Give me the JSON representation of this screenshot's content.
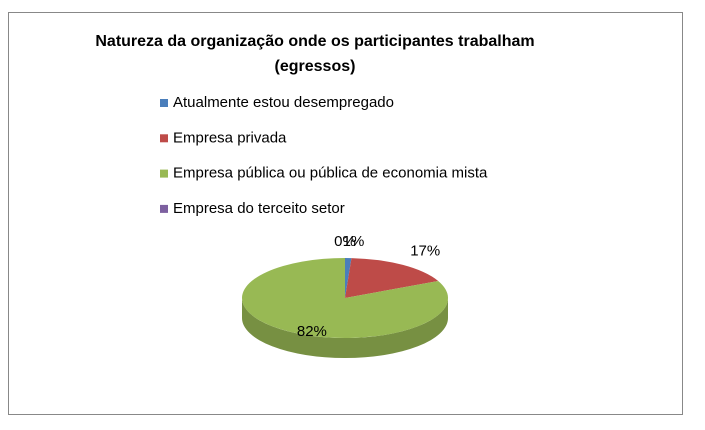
{
  "chart_data": {
    "type": "pie3d",
    "title": [
      "Natureza da organização onde os participantes trabalham",
      "(egressos)"
    ],
    "categories": [
      "Atualmente estou desempregado",
      "Empresa privada",
      "Empresa pública ou pública de economia mista",
      "Empresa do terceito setor"
    ],
    "values": [
      1,
      17,
      82,
      0
    ],
    "value_labels": [
      "1%",
      "17%",
      "82%",
      "0%"
    ],
    "colors": [
      "#4a7ebb",
      "#be4b48",
      "#98b954",
      "#7d60a0"
    ],
    "legend": "top"
  }
}
